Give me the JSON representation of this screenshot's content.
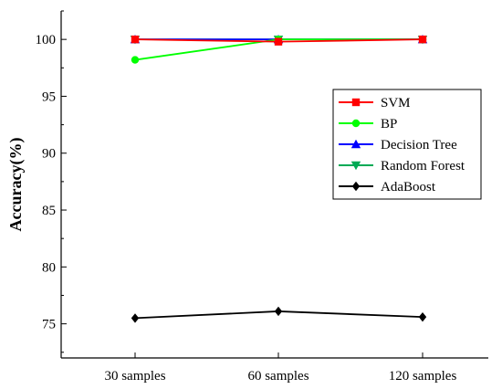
{
  "chart_data": {
    "type": "line",
    "title": "",
    "xlabel": "",
    "ylabel": "Accuracy(%)",
    "categories": [
      "30 samples",
      "60 samples",
      "120 samples"
    ],
    "ylim": [
      72,
      102.5
    ],
    "yticks": [
      75,
      80,
      85,
      90,
      95,
      100
    ],
    "grid": false,
    "legend_position": "right",
    "series": [
      {
        "name": "SVM",
        "values": [
          100,
          99.8,
          100
        ],
        "color": "#ff0000",
        "marker": "square"
      },
      {
        "name": "BP",
        "values": [
          98.2,
          100,
          100
        ],
        "color": "#00ff00",
        "marker": "circle"
      },
      {
        "name": "Decision Tree",
        "values": [
          100,
          100,
          100
        ],
        "color": "#0000ff",
        "marker": "triangle-up"
      },
      {
        "name": "Random Forest",
        "values": [
          100,
          100,
          100
        ],
        "color": "#00aa55",
        "marker": "triangle-down"
      },
      {
        "name": "AdaBoost",
        "values": [
          75.5,
          76.1,
          75.6
        ],
        "color": "#000000",
        "marker": "diamond"
      }
    ]
  }
}
